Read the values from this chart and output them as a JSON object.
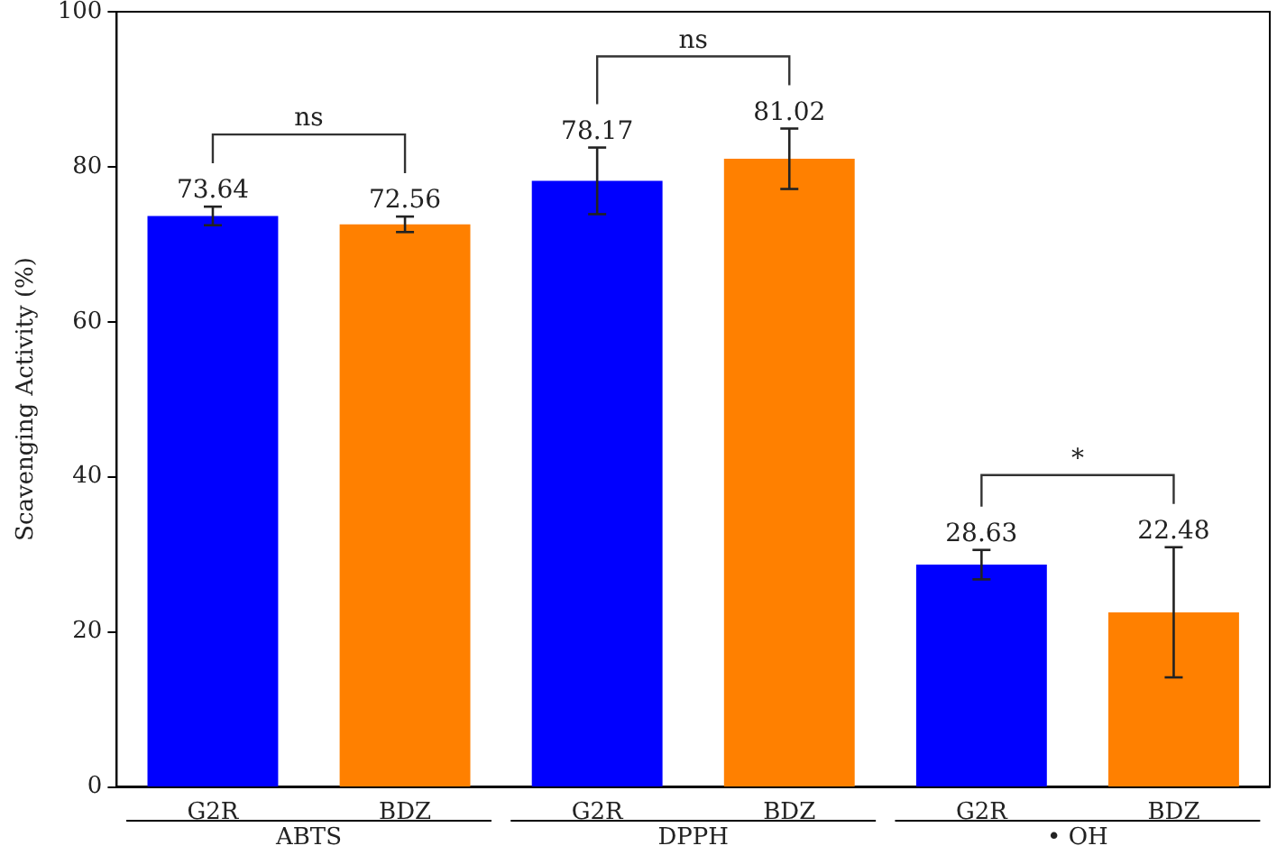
{
  "chart_data": {
    "type": "bar",
    "ylabel": "Scavenging Activity (%)",
    "categories": [
      "G2R",
      "BDZ",
      "G2R",
      "BDZ",
      "G2R",
      "BDZ"
    ],
    "values": [
      73.64,
      72.56,
      78.17,
      81.02,
      28.63,
      22.48
    ],
    "colors": [
      "#0000ff",
      "#ff8000",
      "#0000ff",
      "#ff8000",
      "#0000ff",
      "#ff8000"
    ],
    "errors": [
      1.2,
      1.0,
      4.3,
      3.9,
      1.9,
      8.4
    ],
    "data_labels": true,
    "ylim": [
      0,
      100
    ],
    "yticks": [
      0,
      20,
      40,
      60,
      80,
      100
    ],
    "annotations": [
      "ABTS",
      "DPPH",
      "• OH",
      "ns",
      "ns",
      "*"
    ]
  }
}
